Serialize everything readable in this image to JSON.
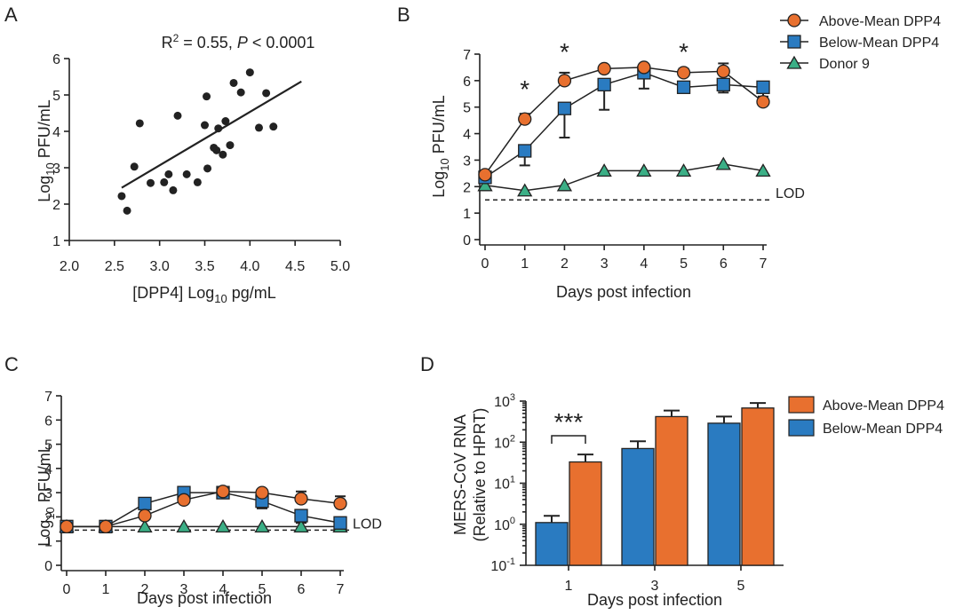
{
  "colors": {
    "above": "#E8702F",
    "below": "#2A7BC1",
    "donor": "#3BAF86",
    "ink": "#222222"
  },
  "chart_data": [
    {
      "panel": "A",
      "type": "scatter",
      "annotation": "R² = 0.55, P < 0.0001",
      "xlabel": "[DPP4]  Log10 pg/mL",
      "ylabel": "Log10 PFU/mL",
      "xlim": [
        2.0,
        5.0
      ],
      "ylim": [
        1,
        6
      ],
      "xticks": [
        "2.0",
        "2.5",
        "3.0",
        "3.5",
        "4.0",
        "4.5",
        "5.0"
      ],
      "yticks": [
        "1",
        "2",
        "3",
        "4",
        "5",
        "6"
      ],
      "points": [
        [
          2.58,
          2.22
        ],
        [
          2.64,
          1.82
        ],
        [
          2.72,
          3.03
        ],
        [
          2.78,
          4.22
        ],
        [
          2.9,
          2.58
        ],
        [
          3.05,
          2.6
        ],
        [
          3.1,
          2.82
        ],
        [
          3.15,
          2.38
        ],
        [
          3.2,
          4.43
        ],
        [
          3.3,
          2.82
        ],
        [
          3.42,
          2.6
        ],
        [
          3.5,
          4.17
        ],
        [
          3.52,
          4.96
        ],
        [
          3.53,
          2.98
        ],
        [
          3.6,
          3.55
        ],
        [
          3.63,
          3.48
        ],
        [
          3.65,
          4.08
        ],
        [
          3.7,
          3.36
        ],
        [
          3.73,
          4.28
        ],
        [
          3.78,
          3.62
        ],
        [
          3.82,
          5.33
        ],
        [
          3.9,
          5.07
        ],
        [
          4.0,
          5.62
        ],
        [
          4.1,
          4.1
        ],
        [
          4.18,
          5.05
        ],
        [
          4.26,
          4.13
        ]
      ],
      "fit": [
        [
          2.58,
          2.45
        ],
        [
          4.57,
          5.37
        ]
      ]
    },
    {
      "panel": "B",
      "type": "line",
      "xlabel": "Days post infection",
      "ylabel": "Log10 PFU/mL",
      "xlim": [
        0,
        7
      ],
      "ylim": [
        0,
        7
      ],
      "x": [
        0,
        1,
        2,
        3,
        4,
        5,
        6,
        7
      ],
      "yticks": [
        "0",
        "1",
        "2",
        "3",
        "4",
        "5",
        "6",
        "7"
      ],
      "lod": 1.5,
      "lod_label": "LOD",
      "significance": [
        {
          "x": 1,
          "label": "*"
        },
        {
          "x": 2,
          "label": "*"
        },
        {
          "x": 5,
          "label": "*"
        }
      ],
      "series": [
        {
          "name": "Above-Mean DPP4",
          "marker": "circle",
          "values": [
            2.45,
            4.55,
            6.0,
            6.45,
            6.5,
            6.3,
            6.35,
            5.2
          ],
          "err": [
            0.1,
            0.2,
            0.3,
            0.1,
            0.1,
            0.15,
            0.3,
            0.6
          ]
        },
        {
          "name": "Below-Mean DPP4",
          "marker": "square",
          "values": [
            2.35,
            3.35,
            4.95,
            5.85,
            6.3,
            5.75,
            5.85,
            5.75
          ],
          "err": [
            0.1,
            0.55,
            1.1,
            0.95,
            0.6,
            0.1,
            0.3,
            0.35
          ]
        },
        {
          "name": "Donor 9",
          "marker": "triangle",
          "values": [
            2.05,
            1.85,
            2.05,
            2.6,
            2.6,
            2.6,
            2.85,
            2.6
          ],
          "err": [
            0,
            0,
            0,
            0,
            0,
            0,
            0,
            0
          ]
        }
      ]
    },
    {
      "panel": "C",
      "type": "line",
      "xlabel": "Days post infection",
      "ylabel": "Log10 PFU/mL",
      "xlim": [
        0,
        7
      ],
      "ylim": [
        0,
        7
      ],
      "x": [
        0,
        1,
        2,
        3,
        4,
        5,
        6,
        7
      ],
      "yticks": [
        "0",
        "1",
        "2",
        "3",
        "4",
        "5",
        "6",
        "7"
      ],
      "lod": 1.45,
      "lod_label": "LOD",
      "series": [
        {
          "name": "Above-Mean DPP4",
          "marker": "circle",
          "values": [
            1.6,
            1.6,
            2.05,
            2.7,
            3.05,
            3.0,
            2.75,
            2.55
          ],
          "err": [
            0,
            0,
            0,
            0.2,
            0.1,
            0.1,
            0.3,
            0.3
          ]
        },
        {
          "name": "Below-Mean DPP4",
          "marker": "square",
          "values": [
            1.6,
            1.6,
            2.55,
            3.0,
            3.0,
            2.65,
            2.05,
            1.75
          ],
          "err": [
            0,
            0,
            0,
            0,
            0.2,
            0.3,
            0.3,
            0.3
          ]
        },
        {
          "name": "Donor 9",
          "marker": "triangle",
          "values": [
            1.6,
            1.6,
            1.6,
            1.6,
            1.6,
            1.6,
            1.6,
            1.6
          ],
          "err": [
            0,
            0,
            0,
            0,
            0,
            0,
            0,
            0
          ]
        }
      ]
    },
    {
      "panel": "D",
      "type": "bar",
      "yscale": "log",
      "xlabel": "Days post infection",
      "ylabel": "MERS-CoV RNA",
      "ylabel2": "(Relative to HPRT)",
      "ylim": [
        0.1,
        1000
      ],
      "yticks": [
        {
          "base": "10",
          "exp": "3"
        },
        {
          "base": "10",
          "exp": "2"
        },
        {
          "base": "10",
          "exp": "1"
        },
        {
          "base": "10",
          "exp": "0"
        },
        {
          "base": "10",
          "exp": "-1"
        }
      ],
      "categories": [
        "1",
        "3",
        "5"
      ],
      "series": [
        {
          "name": "Below-Mean DPP4",
          "values": [
            1.1,
            70,
            290
          ],
          "err_top": [
            1.6,
            105,
            420
          ]
        },
        {
          "name": "Above-Mean DPP4",
          "values": [
            33,
            420,
            680
          ],
          "err_top": [
            50,
            590,
            900
          ]
        }
      ],
      "significance": [
        {
          "category": "1",
          "label": "***"
        }
      ]
    }
  ],
  "legend_B": [
    "Above-Mean DPP4",
    "Below-Mean DPP4",
    "Donor 9"
  ],
  "legend_D": [
    "Above-Mean DPP4",
    "Below-Mean DPP4"
  ],
  "panels": {
    "A": "A",
    "B": "B",
    "C": "C",
    "D": "D"
  },
  "text": {
    "a_r2_prefix": "R",
    "a_r2_sup": "2",
    "a_r2_mid": " = 0.55, ",
    "a_r2_p": "P",
    "a_r2_suffix": " < 0.0001",
    "log": "Log",
    "sub10": "10",
    "pfu": " PFU/mL",
    "dpp4_bracket": "[DPP4]  Log",
    "pgml": " pg/mL"
  }
}
